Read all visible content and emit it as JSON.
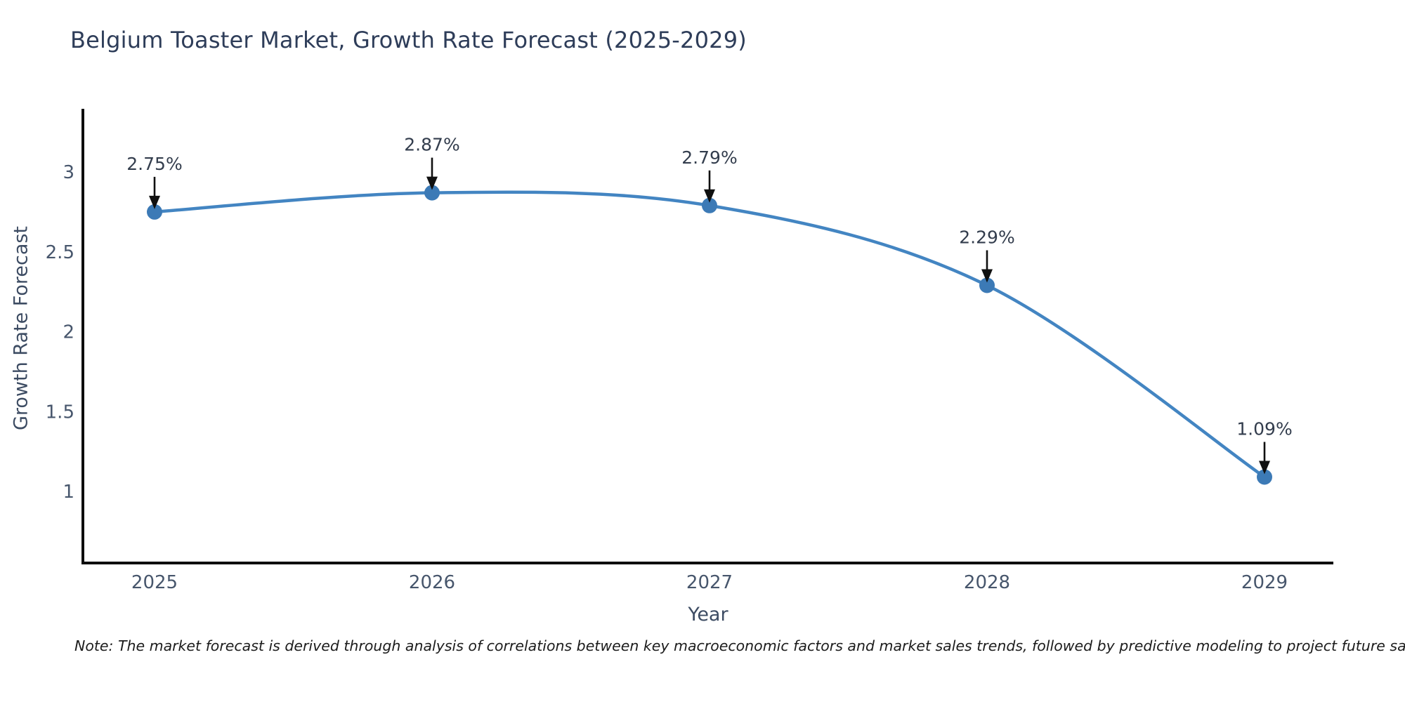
{
  "title": "Belgium Toaster Market, Growth Rate Forecast (2025-2029)",
  "note": "Note: The market forecast is derived through analysis of correlations between key macroeconomic factors and market sales trends, followed by predictive modeling to project future sales",
  "chart_data": {
    "type": "line",
    "title": "Belgium Toaster Market, Growth Rate Forecast (2025-2029)",
    "xlabel": "Year",
    "ylabel": "Growth Rate Forecast",
    "x": [
      2025,
      2026,
      2027,
      2028,
      2029
    ],
    "series": [
      {
        "name": "Growth Rate Forecast",
        "values": [
          2.75,
          2.87,
          2.79,
          2.29,
          1.09
        ]
      }
    ],
    "point_labels": [
      "2.75%",
      "2.87%",
      "2.79%",
      "2.29%",
      "1.09%"
    ],
    "yticks": [
      3,
      2.5,
      2,
      1.5,
      1
    ],
    "ytick_labels": [
      "3",
      "2.5",
      "2",
      "1.5",
      "1"
    ],
    "ylim": [
      0.55,
      3.42
    ],
    "grid": false,
    "line_shape": "spline",
    "legend": "none",
    "annotations": "down-arrows to each point",
    "colors": {
      "line": "#4385c2",
      "marker": "#3c7ab6",
      "axis": "#0d0d0d",
      "arrow": "#101010",
      "tick_text": "#47566c",
      "annotation_text": "#333d4d",
      "title_text": "#2e3d59"
    }
  }
}
